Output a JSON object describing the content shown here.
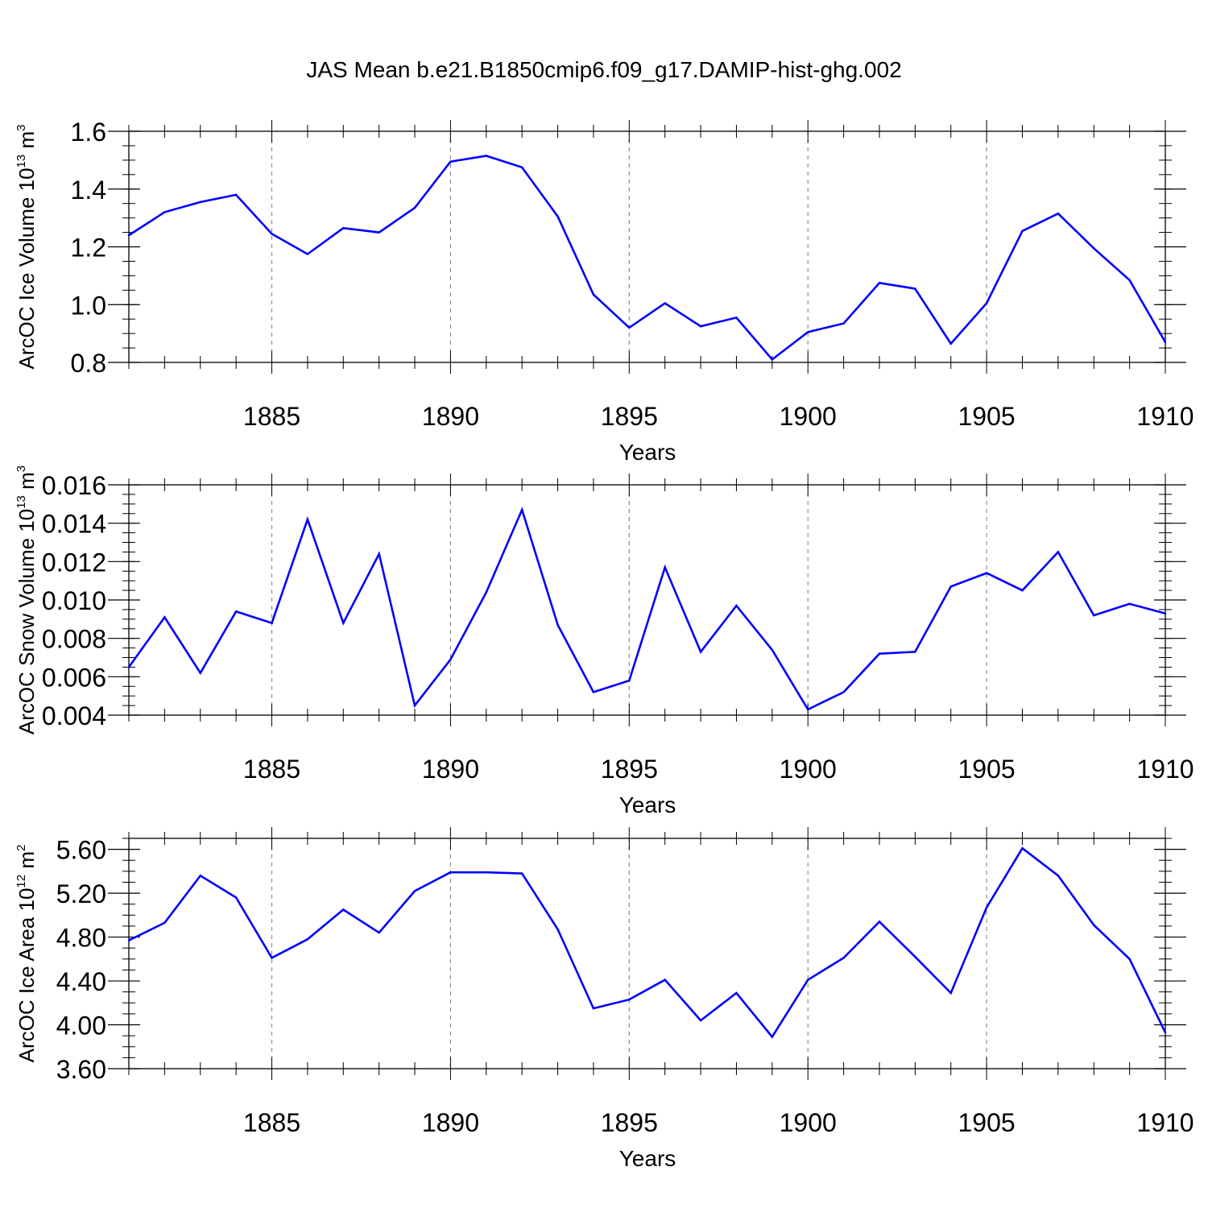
{
  "chart_data": {
    "title": "JAS Mean b.e21.B1850cmip6.f09_g17.DAMIP-hist-ghg.002",
    "line_color": "#0000ff",
    "panels": [
      {
        "type": "line",
        "ylabel": {
          "text": "ArcOC Ice Volume 10",
          "exp": "13",
          "unit": " m",
          "unit_exp": "3"
        },
        "xlabel": "Years",
        "xlim": [
          1881,
          1910
        ],
        "ylim": [
          0.8,
          1.6
        ],
        "yticks": [
          0.8,
          1.0,
          1.2,
          1.4,
          1.6
        ],
        "ytick_labels": [
          "0.8",
          "1.0",
          "1.2",
          "1.4",
          "1.6"
        ],
        "xticks": [
          1885,
          1890,
          1895,
          1900,
          1905,
          1910
        ],
        "xtick_labels": [
          "1885",
          "1890",
          "1895",
          "1900",
          "1905",
          "1910"
        ],
        "x": [
          1881,
          1882,
          1883,
          1884,
          1885,
          1886,
          1887,
          1888,
          1889,
          1890,
          1891,
          1892,
          1893,
          1894,
          1895,
          1896,
          1897,
          1898,
          1899,
          1900,
          1901,
          1902,
          1903,
          1904,
          1905,
          1906,
          1907,
          1908,
          1909,
          1910
        ],
        "values": [
          1.24,
          1.32,
          1.355,
          1.38,
          1.245,
          1.175,
          1.265,
          1.25,
          1.335,
          1.495,
          1.515,
          1.475,
          1.305,
          1.035,
          0.92,
          1.005,
          0.925,
          0.955,
          0.81,
          0.905,
          0.935,
          1.075,
          1.055,
          0.865,
          1.005,
          1.255,
          1.315,
          1.195,
          1.085,
          0.87
        ]
      },
      {
        "type": "line",
        "ylabel": {
          "text": "ArcOC Snow Volume 10",
          "exp": "13",
          "unit": " m",
          "unit_exp": "3"
        },
        "xlabel": "Years",
        "xlim": [
          1881,
          1910
        ],
        "ylim": [
          0.004,
          0.016
        ],
        "yticks": [
          0.004,
          0.006,
          0.008,
          0.01,
          0.012,
          0.014,
          0.016
        ],
        "ytick_labels": [
          "0.004",
          "0.006",
          "0.008",
          "0.010",
          "0.012",
          "0.014",
          "0.016"
        ],
        "xticks": [
          1885,
          1890,
          1895,
          1900,
          1905,
          1910
        ],
        "xtick_labels": [
          "1885",
          "1890",
          "1895",
          "1900",
          "1905",
          "1910"
        ],
        "x": [
          1881,
          1882,
          1883,
          1884,
          1885,
          1886,
          1887,
          1888,
          1889,
          1890,
          1891,
          1892,
          1893,
          1894,
          1895,
          1896,
          1897,
          1898,
          1899,
          1900,
          1901,
          1902,
          1903,
          1904,
          1905,
          1906,
          1907,
          1908,
          1909,
          1910
        ],
        "values": [
          0.0065,
          0.0091,
          0.0062,
          0.0094,
          0.0088,
          0.0142,
          0.0088,
          0.0124,
          0.0045,
          0.0069,
          0.0104,
          0.0147,
          0.0087,
          0.0052,
          0.0058,
          0.0117,
          0.0073,
          0.0097,
          0.0074,
          0.0043,
          0.0052,
          0.0072,
          0.0073,
          0.0107,
          0.0114,
          0.0105,
          0.0125,
          0.0092,
          0.0098,
          0.0093
        ]
      },
      {
        "type": "line",
        "ylabel": {
          "text": "ArcOC Ice Area 10",
          "exp": "12",
          "unit": " m",
          "unit_exp": "2"
        },
        "xlabel": "Years",
        "xlim": [
          1881,
          1910
        ],
        "ylim": [
          3.6,
          5.7
        ],
        "yticks": [
          3.6,
          4.0,
          4.4,
          4.8,
          5.2,
          5.6
        ],
        "ytick_labels": [
          "3.60",
          "4.00",
          "4.40",
          "4.80",
          "5.20",
          "5.60"
        ],
        "xticks": [
          1885,
          1890,
          1895,
          1900,
          1905,
          1910
        ],
        "xtick_labels": [
          "1885",
          "1890",
          "1895",
          "1900",
          "1905",
          "1910"
        ],
        "x": [
          1881,
          1882,
          1883,
          1884,
          1885,
          1886,
          1887,
          1888,
          1889,
          1890,
          1891,
          1892,
          1893,
          1894,
          1895,
          1896,
          1897,
          1898,
          1899,
          1900,
          1901,
          1902,
          1903,
          1904,
          1905,
          1906,
          1907,
          1908,
          1909,
          1910
        ],
        "values": [
          4.77,
          4.93,
          5.36,
          5.16,
          4.61,
          4.78,
          5.05,
          4.84,
          5.22,
          5.39,
          5.39,
          5.38,
          4.87,
          4.15,
          4.23,
          4.41,
          4.04,
          4.29,
          3.89,
          4.41,
          4.61,
          4.94,
          4.62,
          4.29,
          5.07,
          5.61,
          5.36,
          4.91,
          4.6,
          3.93
        ]
      }
    ]
  }
}
